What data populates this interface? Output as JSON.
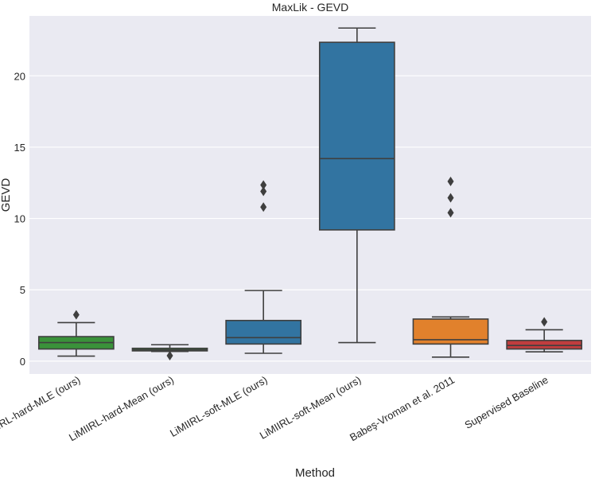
{
  "chart_data": {
    "type": "box",
    "title": "MaxLik - GEVD",
    "xlabel": "Method",
    "ylabel": "GEVD",
    "ylim": [
      -0.9,
      24.2
    ],
    "yticks": [
      0,
      5,
      10,
      15,
      20
    ],
    "grid": true,
    "categories": [
      "LiMIIRL-hard-MLE (ours)",
      "LiMIIRL-hard-Mean (ours)",
      "LiMIIRL-soft-MLE (ours)",
      "LiMIIRL-soft-Mean (ours)",
      "Babeş-Vroman et al. 2011",
      "Supervised Baseline"
    ],
    "boxes": [
      {
        "name": "LiMIIRL-hard-MLE (ours)",
        "color": "#3a923a",
        "whisker_low": 0.35,
        "q1": 0.85,
        "median": 1.3,
        "q3": 1.72,
        "whisker_high": 2.7,
        "outliers": [
          3.25
        ]
      },
      {
        "name": "LiMIIRL-hard-Mean (ours)",
        "color": "#3a923a",
        "whisker_low": 0.68,
        "q1": 0.72,
        "median": 0.8,
        "q3": 0.9,
        "whisker_high": 1.15,
        "outliers": [
          0.38
        ]
      },
      {
        "name": "LiMIIRL-soft-MLE (ours)",
        "color": "#3274a1",
        "whisker_low": 0.55,
        "q1": 1.2,
        "median": 1.65,
        "q3": 2.85,
        "whisker_high": 4.95,
        "outliers": [
          10.8,
          11.9,
          12.35
        ]
      },
      {
        "name": "LiMIIRL-soft-Mean (ours)",
        "color": "#3274a1",
        "whisker_low": 1.3,
        "q1": 9.2,
        "median": 14.2,
        "q3": 22.35,
        "whisker_high": 23.35,
        "outliers": []
      },
      {
        "name": "Babeş-Vroman et al. 2011",
        "color": "#e1812c",
        "whisker_low": 0.28,
        "q1": 1.2,
        "median": 1.5,
        "q3": 2.95,
        "whisker_high": 3.1,
        "outliers": [
          10.4,
          11.45,
          12.6
        ]
      },
      {
        "name": "Supervised Baseline",
        "color": "#c03d3e",
        "whisker_low": 0.65,
        "q1": 0.85,
        "median": 1.1,
        "q3": 1.45,
        "whisker_high": 2.2,
        "outliers": [
          2.75
        ]
      }
    ]
  }
}
